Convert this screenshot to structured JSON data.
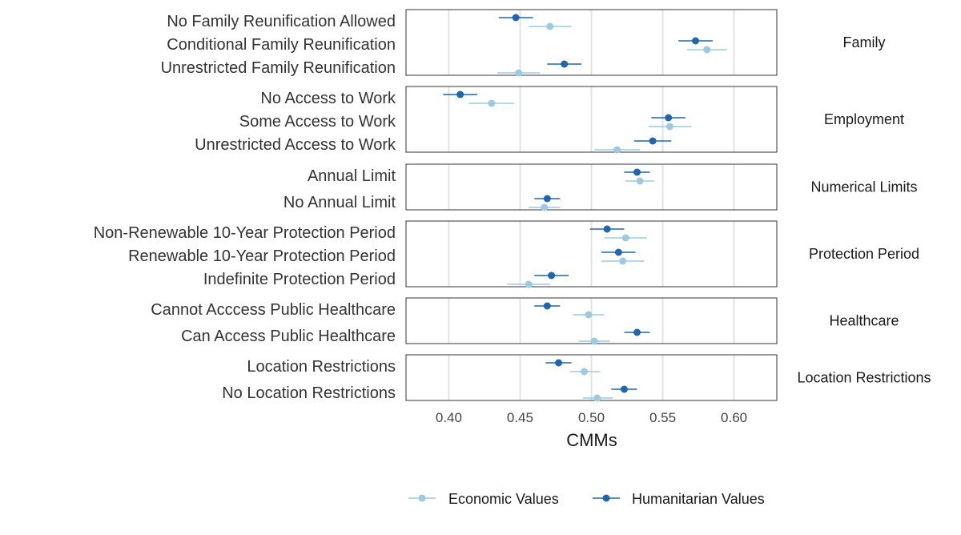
{
  "chart_data": {
    "type": "scatter",
    "subtype": "faceted dot-and-whisker plot (points with confidence intervals)",
    "xlabel": "CMMs",
    "xlim": [
      0.37,
      0.63
    ],
    "xticks": [
      0.4,
      0.45,
      0.5,
      0.55,
      0.6
    ],
    "xtick_labels": [
      "0.40",
      "0.45",
      "0.50",
      "0.55",
      "0.60"
    ],
    "grid": "vertical major gridlines",
    "legend": {
      "position": "bottom",
      "entries": [
        {
          "key": "economic",
          "label": "Economic Values",
          "color": "#9ECAE1"
        },
        {
          "key": "humanitarian",
          "label": "Humanitarian Values",
          "color": "#2166AC"
        }
      ]
    },
    "facets": [
      {
        "name": "Family",
        "levels": [
          {
            "label": "No Family Reunification Allowed",
            "economic": {
              "value": 0.471,
              "lo": 0.456,
              "hi": 0.486
            },
            "humanitarian": {
              "value": 0.447,
              "lo": 0.435,
              "hi": 0.459
            }
          },
          {
            "label": "Conditional Family Reunification",
            "economic": {
              "value": 0.581,
              "lo": 0.567,
              "hi": 0.595
            },
            "humanitarian": {
              "value": 0.573,
              "lo": 0.561,
              "hi": 0.585
            }
          },
          {
            "label": "Unrestricted Family Reunification",
            "economic": {
              "value": 0.449,
              "lo": 0.434,
              "hi": 0.464
            },
            "humanitarian": {
              "value": 0.481,
              "lo": 0.469,
              "hi": 0.493
            }
          }
        ]
      },
      {
        "name": "Employment",
        "levels": [
          {
            "label": "No Access to Work",
            "economic": {
              "value": 0.43,
              "lo": 0.414,
              "hi": 0.446
            },
            "humanitarian": {
              "value": 0.408,
              "lo": 0.396,
              "hi": 0.42
            }
          },
          {
            "label": "Some Access to Work",
            "economic": {
              "value": 0.555,
              "lo": 0.54,
              "hi": 0.57
            },
            "humanitarian": {
              "value": 0.554,
              "lo": 0.542,
              "hi": 0.566
            }
          },
          {
            "label": "Unrestricted Access to Work",
            "economic": {
              "value": 0.518,
              "lo": 0.502,
              "hi": 0.534
            },
            "humanitarian": {
              "value": 0.543,
              "lo": 0.53,
              "hi": 0.556
            }
          }
        ]
      },
      {
        "name": "Numerical Limits",
        "levels": [
          {
            "label": "Annual Limit",
            "economic": {
              "value": 0.534,
              "lo": 0.524,
              "hi": 0.544
            },
            "humanitarian": {
              "value": 0.532,
              "lo": 0.523,
              "hi": 0.541
            }
          },
          {
            "label": "No Annual Limit",
            "economic": {
              "value": 0.467,
              "lo": 0.456,
              "hi": 0.478
            },
            "humanitarian": {
              "value": 0.469,
              "lo": 0.46,
              "hi": 0.478
            }
          }
        ]
      },
      {
        "name": "Protection Period",
        "levels": [
          {
            "label": "Non-Renewable 10-Year Protection Period",
            "economic": {
              "value": 0.524,
              "lo": 0.509,
              "hi": 0.539
            },
            "humanitarian": {
              "value": 0.511,
              "lo": 0.499,
              "hi": 0.523
            }
          },
          {
            "label": "Renewable 10-Year Protection Period",
            "economic": {
              "value": 0.522,
              "lo": 0.507,
              "hi": 0.537
            },
            "humanitarian": {
              "value": 0.519,
              "lo": 0.507,
              "hi": 0.531
            }
          },
          {
            "label": "Indefinite Protection Period",
            "economic": {
              "value": 0.456,
              "lo": 0.441,
              "hi": 0.471
            },
            "humanitarian": {
              "value": 0.472,
              "lo": 0.46,
              "hi": 0.484
            }
          }
        ]
      },
      {
        "name": "Healthcare",
        "levels": [
          {
            "label": "Cannot Acccess Public Healthcare",
            "economic": {
              "value": 0.498,
              "lo": 0.487,
              "hi": 0.509
            },
            "humanitarian": {
              "value": 0.469,
              "lo": 0.46,
              "hi": 0.478
            }
          },
          {
            "label": "Can Access Public Healthcare",
            "economic": {
              "value": 0.502,
              "lo": 0.491,
              "hi": 0.513
            },
            "humanitarian": {
              "value": 0.532,
              "lo": 0.523,
              "hi": 0.541
            }
          }
        ]
      },
      {
        "name": "Location Restrictions",
        "levels": [
          {
            "label": "Location Restrictions",
            "economic": {
              "value": 0.495,
              "lo": 0.485,
              "hi": 0.506
            },
            "humanitarian": {
              "value": 0.477,
              "lo": 0.468,
              "hi": 0.486
            }
          },
          {
            "label": "No Location Restrictions",
            "economic": {
              "value": 0.504,
              "lo": 0.494,
              "hi": 0.515
            },
            "humanitarian": {
              "value": 0.523,
              "lo": 0.514,
              "hi": 0.532
            }
          }
        ]
      }
    ]
  }
}
